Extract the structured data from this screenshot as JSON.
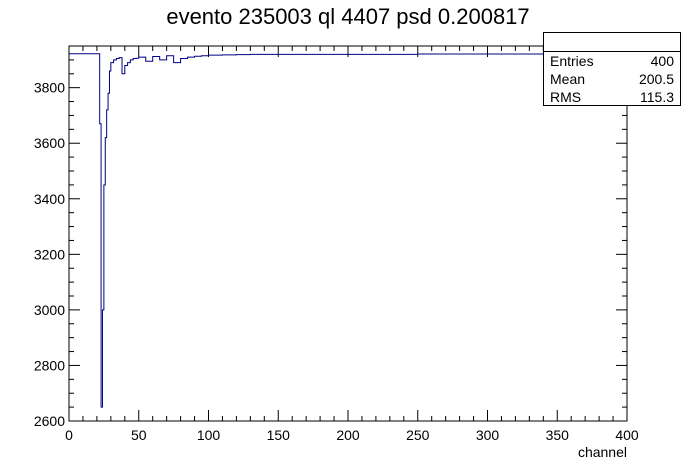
{
  "chart_data": {
    "type": "line",
    "title": "evento 235003 ql 4407 psd 0.200817",
    "xlabel": "channel",
    "ylabel": "",
    "xlim": [
      0,
      400
    ],
    "ylim": [
      2600,
      3950
    ],
    "xticks": [
      0,
      50,
      100,
      150,
      200,
      250,
      300,
      350,
      400
    ],
    "yticks": [
      2600,
      2800,
      3000,
      3200,
      3400,
      3600,
      3800
    ],
    "grid": false,
    "series": [
      {
        "step": true,
        "color": "#000080",
        "x": [
          0,
          20,
          22,
          23,
          24,
          25,
          26,
          27,
          28,
          29,
          30,
          32,
          34,
          36,
          38,
          40,
          42,
          44,
          46,
          48,
          50,
          55,
          60,
          65,
          70,
          75,
          80,
          85,
          90,
          95,
          100,
          110,
          120,
          130,
          140,
          150,
          200,
          250,
          300,
          350,
          400
        ],
        "values": [
          3922,
          3922,
          3670,
          2650,
          3000,
          3450,
          3620,
          3720,
          3780,
          3860,
          3890,
          3900,
          3905,
          3908,
          3850,
          3880,
          3890,
          3900,
          3905,
          3906,
          3910,
          3895,
          3912,
          3900,
          3915,
          3890,
          3905,
          3910,
          3913,
          3915,
          3917,
          3918,
          3919,
          3920,
          3920,
          3920,
          3920,
          3921,
          3921,
          3922,
          3922
        ]
      }
    ]
  },
  "stats_box": {
    "entries_label": "Entries",
    "entries_value": "400",
    "mean_label": "Mean",
    "mean_value": "200.5",
    "rms_label": "RMS",
    "rms_value": "115.3"
  }
}
